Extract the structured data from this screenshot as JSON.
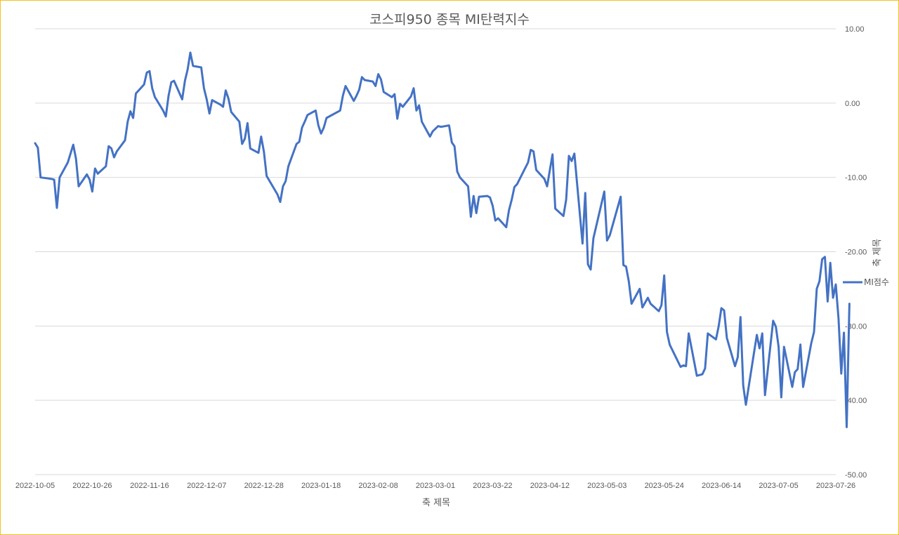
{
  "chart_data": {
    "type": "line",
    "title": "코스피950 종목 MI탄력지수",
    "xlabel": "축 제목",
    "ylabel": "축 제목",
    "y_axis_position": "right",
    "ylim": [
      -50,
      10
    ],
    "yticks": [
      "10.00",
      "0.00",
      "-10.00",
      "-20.00",
      "-30.00",
      "-40.00",
      "-50.00"
    ],
    "xlim": [
      "2022-10-05",
      "2023-07-26"
    ],
    "xticks": [
      "2022-10-05",
      "2022-10-26",
      "2022-11-16",
      "2022-12-07",
      "2022-12-28",
      "2023-01-18",
      "2023-02-08",
      "2023-03-01",
      "2023-03-22",
      "2023-04-12",
      "2023-05-03",
      "2023-05-24",
      "2023-06-14",
      "2023-07-05",
      "2023-07-26"
    ],
    "grid": true,
    "legend": "right",
    "series": [
      {
        "name": "MI점수",
        "color": "#4472c4",
        "points": [
          [
            "2022-10-05",
            -5.4
          ],
          [
            "2022-10-06",
            -6.0
          ],
          [
            "2022-10-07",
            -10.0
          ],
          [
            "2022-10-11",
            -10.2
          ],
          [
            "2022-10-12",
            -10.3
          ],
          [
            "2022-10-13",
            -14.1
          ],
          [
            "2022-10-14",
            -10.0
          ],
          [
            "2022-10-17",
            -8.0
          ],
          [
            "2022-10-18",
            -6.8
          ],
          [
            "2022-10-19",
            -5.6
          ],
          [
            "2022-10-20",
            -7.5
          ],
          [
            "2022-10-21",
            -11.2
          ],
          [
            "2022-10-24",
            -9.6
          ],
          [
            "2022-10-25",
            -10.3
          ],
          [
            "2022-10-26",
            -11.9
          ],
          [
            "2022-10-27",
            -8.8
          ],
          [
            "2022-10-28",
            -9.5
          ],
          [
            "2022-10-31",
            -8.5
          ],
          [
            "2022-11-01",
            -5.8
          ],
          [
            "2022-11-02",
            -6.1
          ],
          [
            "2022-11-03",
            -7.3
          ],
          [
            "2022-11-04",
            -6.5
          ],
          [
            "2022-11-07",
            -5.0
          ],
          [
            "2022-11-08",
            -2.5
          ],
          [
            "2022-11-09",
            -1.1
          ],
          [
            "2022-11-10",
            -2.0
          ],
          [
            "2022-11-11",
            1.3
          ],
          [
            "2022-11-14",
            2.5
          ],
          [
            "2022-11-15",
            4.1
          ],
          [
            "2022-11-16",
            4.3
          ],
          [
            "2022-11-17",
            2.0
          ],
          [
            "2022-11-18",
            0.8
          ],
          [
            "2022-11-21",
            -1.0
          ],
          [
            "2022-11-22",
            -1.8
          ],
          [
            "2022-11-23",
            1.0
          ],
          [
            "2022-11-24",
            2.8
          ],
          [
            "2022-11-25",
            3.0
          ],
          [
            "2022-11-28",
            0.5
          ],
          [
            "2022-11-29",
            3.0
          ],
          [
            "2022-11-30",
            4.5
          ],
          [
            "2022-12-01",
            6.8
          ],
          [
            "2022-12-02",
            5.0
          ],
          [
            "2022-12-05",
            4.8
          ],
          [
            "2022-12-06",
            2.0
          ],
          [
            "2022-12-07",
            0.5
          ],
          [
            "2022-12-08",
            -1.4
          ],
          [
            "2022-12-09",
            0.4
          ],
          [
            "2022-12-12",
            -0.2
          ],
          [
            "2022-12-13",
            -0.5
          ],
          [
            "2022-12-14",
            1.7
          ],
          [
            "2022-12-15",
            0.6
          ],
          [
            "2022-12-16",
            -1.2
          ],
          [
            "2022-12-19",
            -2.5
          ],
          [
            "2022-12-20",
            -5.5
          ],
          [
            "2022-12-21",
            -4.8
          ],
          [
            "2022-12-22",
            -2.7
          ],
          [
            "2022-12-23",
            -6.1
          ],
          [
            "2022-12-26",
            -6.7
          ],
          [
            "2022-12-27",
            -4.5
          ],
          [
            "2022-12-28",
            -6.5
          ],
          [
            "2022-12-29",
            -9.8
          ],
          [
            "2023-01-02",
            -12.3
          ],
          [
            "2023-01-03",
            -13.3
          ],
          [
            "2023-01-04",
            -11.2
          ],
          [
            "2023-01-05",
            -10.5
          ],
          [
            "2023-01-06",
            -8.5
          ],
          [
            "2023-01-09",
            -5.5
          ],
          [
            "2023-01-10",
            -5.2
          ],
          [
            "2023-01-11",
            -3.3
          ],
          [
            "2023-01-12",
            -2.5
          ],
          [
            "2023-01-13",
            -1.6
          ],
          [
            "2023-01-16",
            -1.0
          ],
          [
            "2023-01-17",
            -3.0
          ],
          [
            "2023-01-18",
            -4.1
          ],
          [
            "2023-01-19",
            -3.3
          ],
          [
            "2023-01-20",
            -2.0
          ],
          [
            "2023-01-25",
            -1.0
          ],
          [
            "2023-01-26",
            1.0
          ],
          [
            "2023-01-27",
            2.3
          ],
          [
            "2023-01-30",
            0.3
          ],
          [
            "2023-01-31",
            1.0
          ],
          [
            "2023-02-01",
            1.8
          ],
          [
            "2023-02-02",
            3.5
          ],
          [
            "2023-02-03",
            3.1
          ],
          [
            "2023-02-06",
            2.9
          ],
          [
            "2023-02-07",
            2.3
          ],
          [
            "2023-02-08",
            3.9
          ],
          [
            "2023-02-09",
            3.2
          ],
          [
            "2023-02-10",
            1.5
          ],
          [
            "2023-02-13",
            0.8
          ],
          [
            "2023-02-14",
            1.2
          ],
          [
            "2023-02-15",
            -2.1
          ],
          [
            "2023-02-16",
            -0.1
          ],
          [
            "2023-02-17",
            -0.5
          ],
          [
            "2023-02-20",
            0.9
          ],
          [
            "2023-02-21",
            2.0
          ],
          [
            "2023-02-22",
            -1.0
          ],
          [
            "2023-02-23",
            -0.3
          ],
          [
            "2023-02-24",
            -2.5
          ],
          [
            "2023-02-27",
            -4.5
          ],
          [
            "2023-02-28",
            -3.8
          ],
          [
            "2023-03-02",
            -3.1
          ],
          [
            "2023-03-03",
            -3.2
          ],
          [
            "2023-03-06",
            -3.0
          ],
          [
            "2023-03-07",
            -5.3
          ],
          [
            "2023-03-08",
            -5.8
          ],
          [
            "2023-03-09",
            -9.2
          ],
          [
            "2023-03-10",
            -10.0
          ],
          [
            "2023-03-13",
            -11.2
          ],
          [
            "2023-03-14",
            -15.3
          ],
          [
            "2023-03-15",
            -12.5
          ],
          [
            "2023-03-16",
            -14.8
          ],
          [
            "2023-03-17",
            -12.6
          ],
          [
            "2023-03-20",
            -12.5
          ],
          [
            "2023-03-21",
            -12.7
          ],
          [
            "2023-03-22",
            -13.8
          ],
          [
            "2023-03-23",
            -15.8
          ],
          [
            "2023-03-24",
            -15.5
          ],
          [
            "2023-03-27",
            -16.7
          ],
          [
            "2023-03-28",
            -14.4
          ],
          [
            "2023-03-29",
            -13.0
          ],
          [
            "2023-03-30",
            -11.3
          ],
          [
            "2023-03-31",
            -10.9
          ],
          [
            "2023-04-03",
            -8.7
          ],
          [
            "2023-04-04",
            -8.0
          ],
          [
            "2023-04-05",
            -6.3
          ],
          [
            "2023-04-06",
            -6.5
          ],
          [
            "2023-04-07",
            -9.0
          ],
          [
            "2023-04-10",
            -10.2
          ],
          [
            "2023-04-11",
            -11.2
          ],
          [
            "2023-04-12",
            -9.0
          ],
          [
            "2023-04-13",
            -6.9
          ],
          [
            "2023-04-14",
            -14.2
          ],
          [
            "2023-04-17",
            -15.2
          ],
          [
            "2023-04-18",
            -13.0
          ],
          [
            "2023-04-19",
            -7.1
          ],
          [
            "2023-04-20",
            -7.8
          ],
          [
            "2023-04-21",
            -6.8
          ],
          [
            "2023-04-24",
            -18.9
          ],
          [
            "2023-04-25",
            -12.1
          ],
          [
            "2023-04-26",
            -21.7
          ],
          [
            "2023-04-27",
            -22.4
          ],
          [
            "2023-04-28",
            -18.2
          ],
          [
            "2023-05-02",
            -11.9
          ],
          [
            "2023-05-03",
            -18.5
          ],
          [
            "2023-05-04",
            -17.8
          ],
          [
            "2023-05-08",
            -12.6
          ],
          [
            "2023-05-09",
            -21.8
          ],
          [
            "2023-05-10",
            -22.0
          ],
          [
            "2023-05-11",
            -24.0
          ],
          [
            "2023-05-12",
            -27.0
          ],
          [
            "2023-05-15",
            -25.0
          ],
          [
            "2023-05-16",
            -27.5
          ],
          [
            "2023-05-18",
            -26.2
          ],
          [
            "2023-05-19",
            -27.0
          ],
          [
            "2023-05-22",
            -28.0
          ],
          [
            "2023-05-23",
            -27.2
          ],
          [
            "2023-05-24",
            -23.2
          ],
          [
            "2023-05-25",
            -30.8
          ],
          [
            "2023-05-26",
            -32.5
          ],
          [
            "2023-05-30",
            -35.5
          ],
          [
            "2023-05-31",
            -35.3
          ],
          [
            "2023-06-01",
            -35.4
          ],
          [
            "2023-06-02",
            -31.0
          ],
          [
            "2023-06-05",
            -36.7
          ],
          [
            "2023-06-07",
            -36.5
          ],
          [
            "2023-06-08",
            -35.7
          ],
          [
            "2023-06-09",
            -31.0
          ],
          [
            "2023-06-12",
            -31.8
          ],
          [
            "2023-06-13",
            -30.0
          ],
          [
            "2023-06-14",
            -27.6
          ],
          [
            "2023-06-15",
            -27.9
          ],
          [
            "2023-06-16",
            -31.6
          ],
          [
            "2023-06-19",
            -35.4
          ],
          [
            "2023-06-20",
            -34.2
          ],
          [
            "2023-06-21",
            -28.8
          ],
          [
            "2023-06-22",
            -38.0
          ],
          [
            "2023-06-23",
            -40.6
          ],
          [
            "2023-06-26",
            -33.5
          ],
          [
            "2023-06-27",
            -31.2
          ],
          [
            "2023-06-28",
            -33.0
          ],
          [
            "2023-06-29",
            -31.0
          ],
          [
            "2023-06-30",
            -39.3
          ],
          [
            "2023-07-03",
            -29.3
          ],
          [
            "2023-07-04",
            -30.1
          ],
          [
            "2023-07-05",
            -32.8
          ],
          [
            "2023-07-06",
            -39.6
          ],
          [
            "2023-07-07",
            -32.8
          ],
          [
            "2023-07-10",
            -38.2
          ],
          [
            "2023-07-11",
            -36.2
          ],
          [
            "2023-07-12",
            -35.8
          ],
          [
            "2023-07-13",
            -32.5
          ],
          [
            "2023-07-14",
            -38.2
          ],
          [
            "2023-07-17",
            -32.3
          ],
          [
            "2023-07-18",
            -30.8
          ],
          [
            "2023-07-19",
            -25.0
          ],
          [
            "2023-07-20",
            -24.0
          ],
          [
            "2023-07-21",
            -21.0
          ],
          [
            "2023-07-22",
            -20.7
          ],
          [
            "2023-07-23",
            -26.7
          ],
          [
            "2023-07-24",
            -21.5
          ],
          [
            "2023-07-25",
            -26.2
          ],
          [
            "2023-07-26",
            -24.4
          ],
          [
            "2023-07-27",
            -29.0
          ],
          [
            "2023-07-28",
            -36.4
          ],
          [
            "2023-07-29",
            -30.9
          ],
          [
            "2023-07-30",
            -43.6
          ],
          [
            "2023-07-31",
            -27.0
          ]
        ]
      }
    ]
  }
}
